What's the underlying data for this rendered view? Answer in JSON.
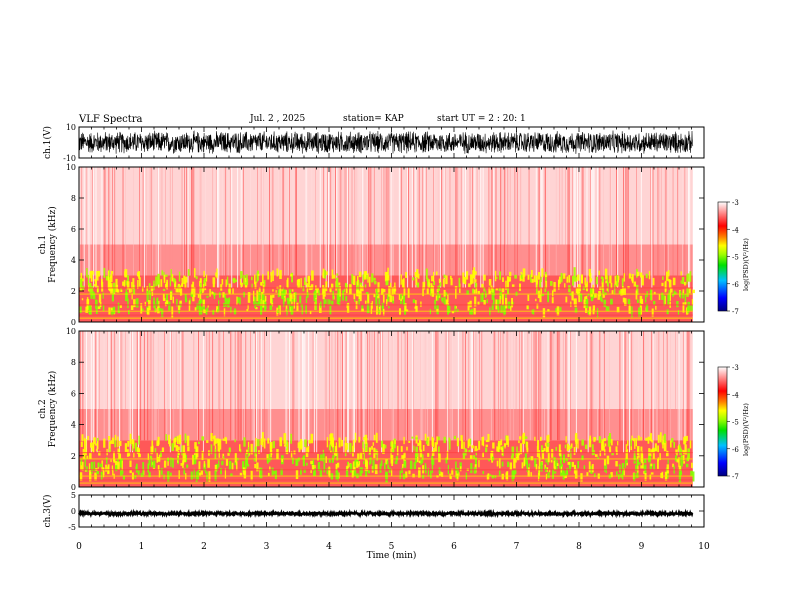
{
  "header": {
    "title": "VLF Spectra",
    "date": "Jul. 2 , 2025",
    "station": "station= KAP",
    "start": "start UT =  2 : 20: 1"
  },
  "chart_data": [
    {
      "id": "ch1-waveform",
      "type": "line",
      "ylabel": "ch.1(V)",
      "ylim": [
        -10,
        10
      ],
      "yticks": [
        "10",
        "-10"
      ],
      "xlim": [
        0,
        10
      ],
      "data_extent_min": 9.82,
      "description_values": {
        "mean": 0,
        "amplitude_approx": 8
      }
    },
    {
      "id": "ch1-spectrogram",
      "type": "heatmap",
      "ylabel": "ch.1\nFrequency (kHz)",
      "ylim": [
        0,
        10
      ],
      "yticks": [
        "0",
        "2",
        "4",
        "6",
        "8",
        "10"
      ],
      "xlim": [
        0,
        10
      ],
      "data_extent_min": 9.82,
      "colorbar": {
        "label": "log(PSD)(V²/Hz)",
        "ticks": [
          "-3",
          "-4",
          "-5",
          "-6",
          "-7"
        ],
        "range": [
          -7,
          -3
        ],
        "colors": [
          "#000080",
          "#0000ff",
          "#00c0ff",
          "#00e000",
          "#a0ff00",
          "#ffff00",
          "#ff8000",
          "#ff0000",
          "#ffffff"
        ]
      },
      "bands_khz": [
        {
          "from": 0,
          "to": 3,
          "level": "high"
        },
        {
          "from": 3,
          "to": 5,
          "level": "medium"
        },
        {
          "from": 5,
          "to": 10,
          "level": "low"
        }
      ]
    },
    {
      "id": "ch2-spectrogram",
      "type": "heatmap",
      "ylabel": "ch.2\nFrequency (kHz)",
      "ylim": [
        0,
        10
      ],
      "yticks": [
        "0",
        "2",
        "4",
        "6",
        "8",
        "10"
      ],
      "xlim": [
        0,
        10
      ],
      "data_extent_min": 9.82,
      "colorbar": {
        "label": "log(PSD)(V²/Hz)",
        "ticks": [
          "-3",
          "-4",
          "-5",
          "-6",
          "-7"
        ],
        "range": [
          -7,
          -3
        ]
      },
      "bands_khz": [
        {
          "from": 0,
          "to": 3,
          "level": "high"
        },
        {
          "from": 3,
          "to": 5,
          "level": "medium"
        },
        {
          "from": 5,
          "to": 10,
          "level": "low"
        }
      ]
    },
    {
      "id": "ch3-waveform",
      "type": "line",
      "ylabel": "ch.3(V)",
      "ylim": [
        -5,
        5
      ],
      "yticks": [
        "5",
        "0",
        "-5"
      ],
      "xlim": [
        0,
        10
      ],
      "data_extent_min": 9.82,
      "description_values": {
        "mean": -0.8,
        "amplitude_approx": 0.4
      }
    }
  ],
  "xaxis": {
    "label": "Time (min)",
    "ticks": [
      "0",
      "1",
      "2",
      "3",
      "4",
      "5",
      "6",
      "7",
      "8",
      "9",
      "10"
    ]
  }
}
